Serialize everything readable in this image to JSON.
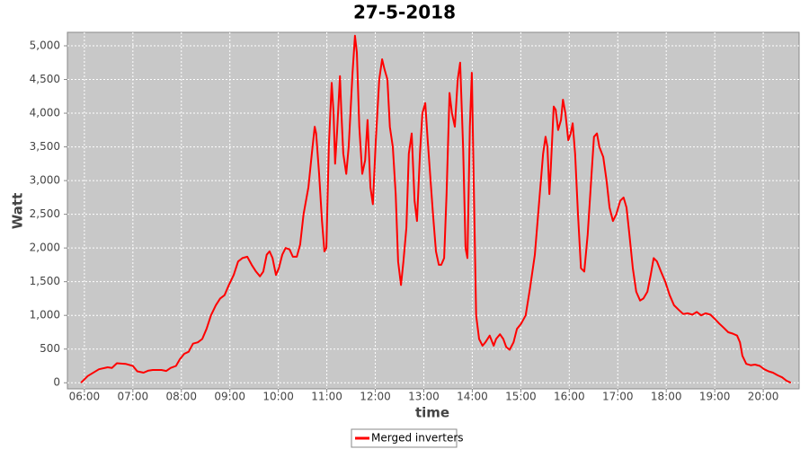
{
  "chart_data": {
    "type": "line",
    "title": "27-5-2018",
    "x_label": "time",
    "y_label": "Watt",
    "x": [
      5.93,
      6.07,
      6.3,
      6.48,
      6.57,
      6.67,
      6.85,
      7.0,
      7.09,
      7.22,
      7.32,
      7.41,
      7.59,
      7.69,
      7.78,
      7.89,
      7.97,
      8.06,
      8.15,
      8.24,
      8.34,
      8.43,
      8.52,
      8.61,
      8.71,
      8.8,
      8.89,
      8.98,
      9.08,
      9.17,
      9.26,
      9.36,
      9.45,
      9.54,
      9.62,
      9.69,
      9.76,
      9.82,
      9.88,
      9.95,
      10.01,
      10.08,
      10.15,
      10.23,
      10.3,
      10.38,
      10.45,
      10.52,
      10.62,
      10.69,
      10.75,
      10.78,
      10.84,
      10.9,
      10.95,
      10.99,
      11.04,
      11.1,
      11.14,
      11.17,
      11.21,
      11.27,
      11.3,
      11.34,
      11.4,
      11.45,
      11.53,
      11.58,
      11.62,
      11.67,
      11.73,
      11.79,
      11.84,
      11.9,
      11.95,
      12.01,
      12.08,
      12.14,
      12.19,
      12.25,
      12.3,
      12.36,
      12.42,
      12.47,
      12.53,
      12.58,
      12.64,
      12.69,
      12.75,
      12.81,
      12.86,
      12.92,
      12.97,
      13.03,
      13.08,
      13.14,
      13.19,
      13.25,
      13.31,
      13.36,
      13.42,
      13.47,
      13.53,
      13.58,
      13.64,
      13.7,
      13.75,
      13.81,
      13.86,
      13.9,
      13.95,
      13.99,
      14.03,
      14.08,
      14.14,
      14.21,
      14.27,
      14.36,
      14.44,
      14.49,
      14.57,
      14.64,
      14.7,
      14.77,
      14.85,
      14.92,
      15.01,
      15.1,
      15.19,
      15.29,
      15.38,
      15.46,
      15.51,
      15.55,
      15.59,
      15.62,
      15.68,
      15.72,
      15.77,
      15.83,
      15.87,
      15.92,
      15.98,
      16.03,
      16.07,
      16.12,
      16.18,
      16.24,
      16.31,
      16.38,
      16.46,
      16.51,
      16.57,
      16.62,
      16.7,
      16.77,
      16.83,
      16.9,
      16.97,
      17.05,
      17.12,
      17.18,
      17.24,
      17.31,
      17.38,
      17.46,
      17.53,
      17.61,
      17.68,
      17.74,
      17.81,
      17.89,
      17.98,
      18.07,
      18.16,
      18.26,
      18.35,
      18.44,
      18.54,
      18.63,
      18.72,
      18.81,
      18.91,
      19.0,
      19.09,
      19.18,
      19.28,
      19.37,
      19.46,
      19.52,
      19.57,
      19.65,
      19.74,
      19.83,
      19.93,
      20.02,
      20.11,
      20.2,
      20.3,
      20.39,
      20.48,
      20.57
    ],
    "series": [
      {
        "name": "Merged inverters",
        "color": "#ff0000",
        "values": [
          0,
          100,
          200,
          230,
          220,
          290,
          280,
          250,
          170,
          150,
          180,
          190,
          190,
          175,
          220,
          250,
          350,
          430,
          460,
          580,
          600,
          650,
          800,
          1000,
          1150,
          1250,
          1300,
          1450,
          1600,
          1800,
          1850,
          1870,
          1750,
          1650,
          1580,
          1650,
          1900,
          1950,
          1850,
          1600,
          1700,
          1900,
          2000,
          1980,
          1870,
          1870,
          2050,
          2500,
          2900,
          3400,
          3800,
          3700,
          3100,
          2400,
          1950,
          2000,
          3500,
          4450,
          4000,
          3250,
          3700,
          4550,
          4000,
          3400,
          3100,
          3500,
          4600,
          5150,
          4900,
          3800,
          3100,
          3300,
          3900,
          2900,
          2650,
          3600,
          4500,
          4800,
          4650,
          4500,
          3800,
          3500,
          2800,
          1800,
          1450,
          1800,
          2300,
          3400,
          3700,
          2700,
          2400,
          3400,
          4000,
          4150,
          3600,
          3000,
          2500,
          1950,
          1750,
          1750,
          1850,
          2800,
          4300,
          4000,
          3800,
          4500,
          4750,
          3500,
          2000,
          1850,
          3800,
          4600,
          3000,
          1000,
          650,
          550,
          600,
          700,
          550,
          650,
          720,
          650,
          530,
          490,
          600,
          800,
          880,
          1000,
          1400,
          1900,
          2700,
          3400,
          3650,
          3500,
          2800,
          3200,
          4100,
          4050,
          3750,
          3900,
          4200,
          4000,
          3600,
          3700,
          3850,
          3400,
          2500,
          1700,
          1650,
          2200,
          3100,
          3650,
          3700,
          3500,
          3350,
          3000,
          2600,
          2400,
          2500,
          2700,
          2750,
          2600,
          2200,
          1700,
          1350,
          1220,
          1250,
          1350,
          1600,
          1850,
          1800,
          1650,
          1500,
          1300,
          1150,
          1080,
          1020,
          1030,
          1010,
          1050,
          1000,
          1030,
          1010,
          950,
          880,
          820,
          750,
          730,
          700,
          600,
          400,
          280,
          260,
          270,
          250,
          200,
          170,
          150,
          110,
          80,
          30,
          0
        ]
      }
    ],
    "xlim": [
      5.65,
      20.74
    ],
    "xticks": [
      {
        "value": 6,
        "label": "06:00"
      },
      {
        "value": 7,
        "label": "07:00"
      },
      {
        "value": 8,
        "label": "08:00"
      },
      {
        "value": 9,
        "label": "09:00"
      },
      {
        "value": 10,
        "label": "10:00"
      },
      {
        "value": 11,
        "label": "11:00"
      },
      {
        "value": 12,
        "label": "12:00"
      },
      {
        "value": 13,
        "label": "13:00"
      },
      {
        "value": 14,
        "label": "14:00"
      },
      {
        "value": 15,
        "label": "15:00"
      },
      {
        "value": 16,
        "label": "16:00"
      },
      {
        "value": 17,
        "label": "17:00"
      },
      {
        "value": 18,
        "label": "18:00"
      },
      {
        "value": 19,
        "label": "19:00"
      },
      {
        "value": 20,
        "label": "20:00"
      }
    ],
    "ylim": [
      -90,
      5200
    ],
    "yticks": [
      0,
      500,
      {
        "value": 1000,
        "label": "1,000"
      },
      {
        "value": 1500,
        "label": "1,500"
      },
      {
        "value": 2000,
        "label": "2,000"
      },
      {
        "value": 2500,
        "label": "2,500"
      },
      {
        "value": 3000,
        "label": "3,000"
      },
      {
        "value": 3500,
        "label": "3,500"
      },
      {
        "value": 4000,
        "label": "4,000"
      },
      {
        "value": 4500,
        "label": "4,500"
      },
      {
        "value": 5000,
        "label": "5,000"
      }
    ],
    "grid": true,
    "legend": "bottom"
  }
}
